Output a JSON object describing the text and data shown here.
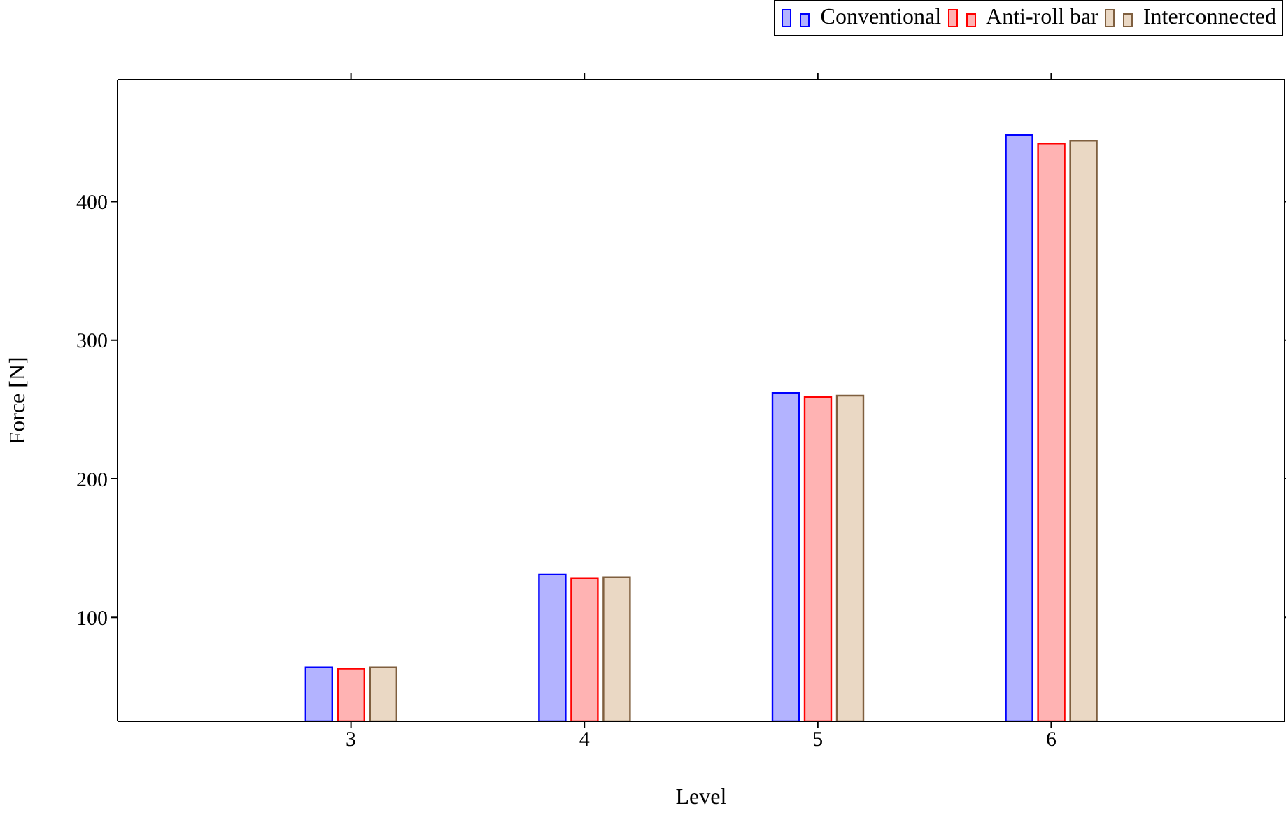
{
  "chart_data": {
    "type": "bar",
    "xlabel": "Level",
    "ylabel": "Force [N]",
    "x": [
      3,
      4,
      5,
      6
    ],
    "series": [
      {
        "name": "Conventional",
        "color": "#b3b3ff",
        "values": [
          64,
          131,
          262,
          448
        ]
      },
      {
        "name": "Anti-roll bar",
        "color": "#ffb3b3",
        "values": [
          63,
          128,
          259,
          442
        ]
      },
      {
        "name": "Interconnected",
        "color": "#ead8c4",
        "values": [
          64,
          129,
          260,
          444
        ]
      }
    ],
    "xlim": [
      2,
      7
    ],
    "xticks": [
      3,
      4,
      5,
      6
    ],
    "ylim": [
      25,
      488
    ],
    "yticks": [
      100,
      200,
      300,
      400
    ],
    "legend": "top right"
  }
}
